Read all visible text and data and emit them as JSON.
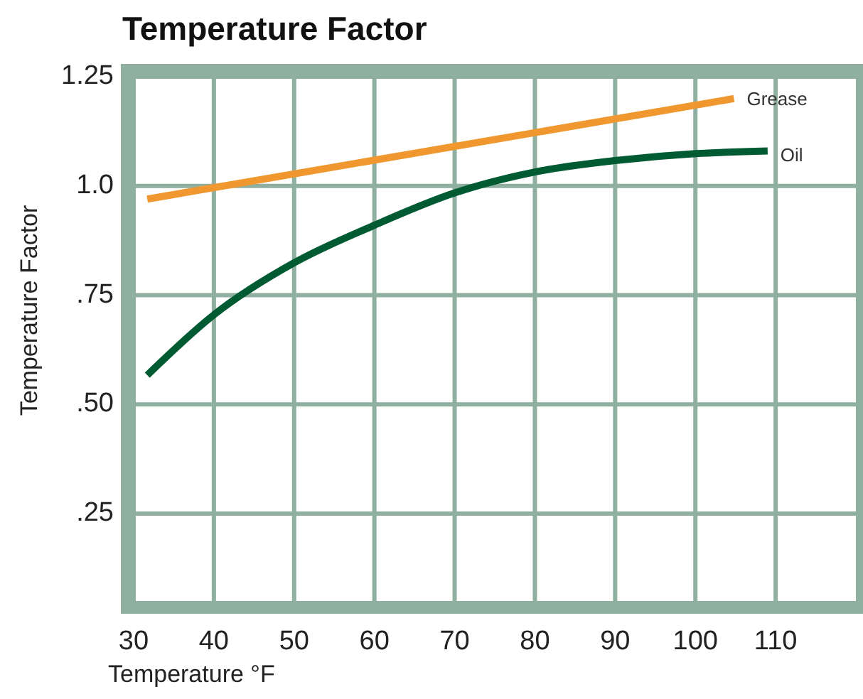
{
  "chart_data": {
    "type": "line",
    "title": "Temperature Factor",
    "xlabel": "Temperature °F",
    "ylabel": "Temperature Factor",
    "xlim": [
      30,
      120
    ],
    "ylim": [
      0.05,
      1.25
    ],
    "xticks": [
      30,
      40,
      50,
      60,
      70,
      80,
      90,
      100,
      110
    ],
    "yticks": [
      {
        "value": 0.25,
        "label": ".25"
      },
      {
        "value": 0.5,
        "label": ".50"
      },
      {
        "value": 0.75,
        "label": ".75"
      },
      {
        "value": 1,
        "label": "1.0"
      },
      1.25
    ],
    "grid": true,
    "legend": false,
    "marker": "none",
    "line_style": "solid",
    "series": [
      {
        "name": "Grease",
        "color": "#f0972f",
        "x": [
          31.7,
          104.8
        ],
        "values": [
          0.97,
          1.2
        ]
      },
      {
        "name": "Oil",
        "color": "#005a32",
        "x": [
          31.7,
          40,
          50,
          60,
          70,
          80,
          90,
          100,
          109
        ],
        "values": [
          0.567,
          0.705,
          0.824,
          0.91,
          0.984,
          1.032,
          1.058,
          1.074,
          1.08
        ]
      }
    ]
  }
}
